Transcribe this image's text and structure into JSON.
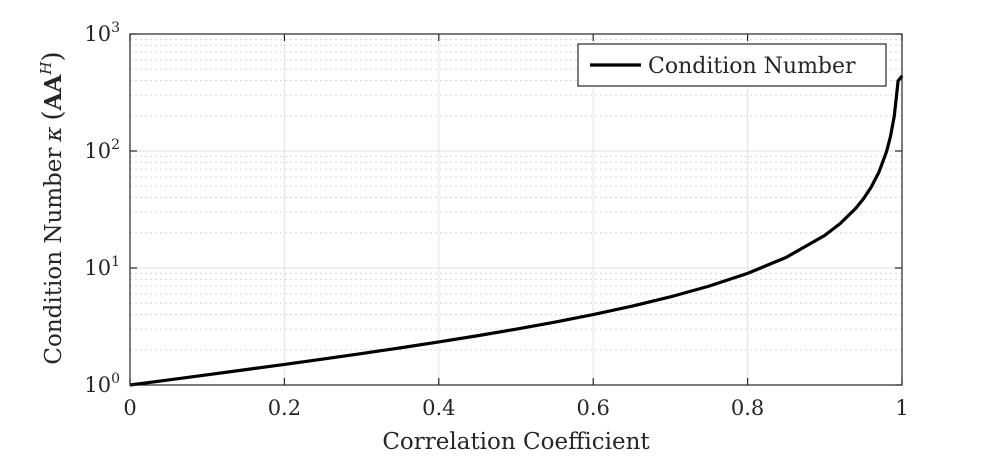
{
  "chart_data": {
    "type": "line",
    "xlabel": "Correlation Coefficient",
    "ylabel": {
      "prefix": "Condition Number",
      "symbol": "κ",
      "open": "(",
      "bold": "AA",
      "superscript": "H",
      "close": ")"
    },
    "xlim": [
      0,
      1
    ],
    "ylim": [
      1,
      1000
    ],
    "yscale": "log",
    "grid": true,
    "minor_grid": true,
    "x_ticks": [
      "0",
      "0.2",
      "0.4",
      "0.6",
      "0.8",
      "1"
    ],
    "y_ticks": [
      {
        "base": "10",
        "exp": "0"
      },
      {
        "base": "10",
        "exp": "1"
      },
      {
        "base": "10",
        "exp": "2"
      },
      {
        "base": "10",
        "exp": "3"
      }
    ],
    "legend": {
      "placement": "top-right",
      "entries": [
        "Condition Number"
      ]
    },
    "series": [
      {
        "name": "Condition Number",
        "color": "#000000",
        "x": [
          0,
          0.05,
          0.1,
          0.15,
          0.2,
          0.25,
          0.3,
          0.35,
          0.4,
          0.45,
          0.5,
          0.55,
          0.6,
          0.65,
          0.7,
          0.75,
          0.8,
          0.85,
          0.9,
          0.92,
          0.94,
          0.95,
          0.96,
          0.97,
          0.98,
          0.985,
          0.99,
          0.995,
          0.998,
          1.0
        ],
        "y": [
          1.0,
          1.105,
          1.222,
          1.353,
          1.5,
          1.667,
          1.857,
          2.077,
          2.333,
          2.636,
          3.0,
          3.444,
          4.0,
          4.714,
          5.667,
          7.0,
          9.0,
          12.33,
          19.0,
          24.0,
          32.33,
          39.0,
          49.0,
          65.67,
          99.0,
          132.3,
          199.0,
          399.0,
          420.0,
          440.0
        ]
      }
    ]
  }
}
